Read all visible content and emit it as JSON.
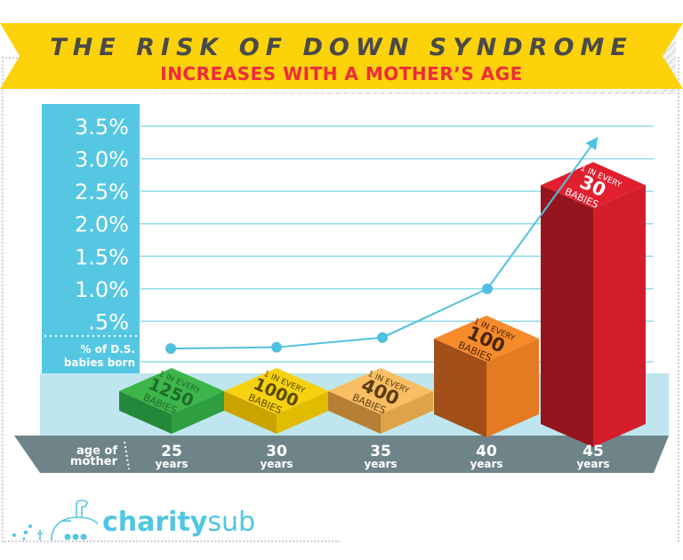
{
  "header": {
    "title": "THE RISK OF DOWN SYNDROME",
    "subtitle": "INCREASES WITH A MOTHER’S AGE"
  },
  "colors": {
    "banner": "#fcd20a",
    "axis_panel": "#56c7e3",
    "line": "#4fc1df",
    "floor": "#bfe6ee",
    "base": "#6f8489"
  },
  "chart_data": {
    "type": "bar",
    "title": "THE RISK OF DOWN SYNDROME INCREASES WITH A MOTHER’S AGE",
    "ylabel": "% of D.S. babies born",
    "xlabel": "age of mother",
    "ylim": [
      0,
      3.5
    ],
    "yticks": [
      {
        "value": 3.5,
        "label": "3.5%"
      },
      {
        "value": 3.0,
        "label": "3.0%"
      },
      {
        "value": 2.5,
        "label": "2.5%"
      },
      {
        "value": 2.0,
        "label": "2.0%"
      },
      {
        "value": 1.5,
        "label": "1.5%"
      },
      {
        "value": 1.0,
        "label": "1.0%"
      },
      {
        "value": 0.5,
        "label": ".5%"
      }
    ],
    "grid": true,
    "categories": [
      {
        "age": "25",
        "unit": "years",
        "label_top": "1 IN EVERY",
        "label_num": "1250",
        "label_bottom": "BABIES",
        "percent": 0.08,
        "color": "#3db54a",
        "dark": "#24883a",
        "mid": "#2e9e40",
        "text": "#1f6b2c"
      },
      {
        "age": "30",
        "unit": "years",
        "label_top": "1 IN EVERY",
        "label_num": "1000",
        "label_bottom": "BABIES",
        "percent": 0.1,
        "color": "#f6d10f",
        "dark": "#c9a400",
        "mid": "#e0bc00",
        "text": "#5a4a00"
      },
      {
        "age": "35",
        "unit": "years",
        "label_top": "1 IN EVERY",
        "label_num": "400",
        "label_bottom": "BABIES",
        "percent": 0.25,
        "color": "#f9bd63",
        "dark": "#b77f33",
        "mid": "#e0a248",
        "text": "#5a3d12"
      },
      {
        "age": "40",
        "unit": "years",
        "label_top": "1 IN EVERY",
        "label_num": "100",
        "label_bottom": "BABIES",
        "percent": 1.0,
        "color": "#f68b2c",
        "dark": "#a24f1a",
        "mid": "#e47a22",
        "text": "#4a2608"
      },
      {
        "age": "45",
        "unit": "years",
        "label_top": "1 IN EVERY",
        "label_num": "30",
        "label_bottom": "BABIES",
        "percent": 3.33,
        "color": "#e21f2f",
        "dark": "#95141e",
        "mid": "#d41d2c",
        "text": "#ffffff"
      }
    ]
  },
  "logo": {
    "bold": "charity",
    "light": "sub"
  }
}
